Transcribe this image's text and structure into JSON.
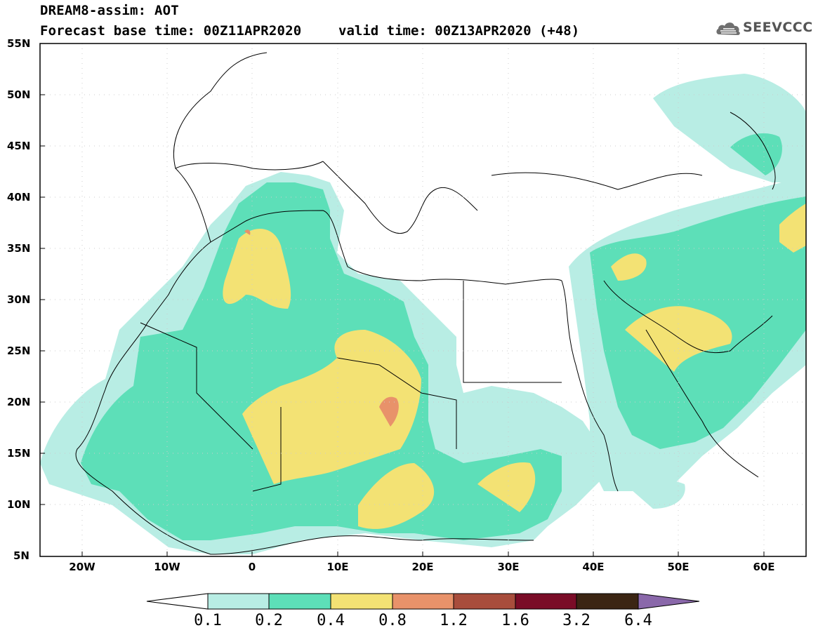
{
  "title": {
    "line1": "DREAM8-assim: AOT",
    "line2_base": "Forecast base time: 00Z11APR2020",
    "line2_valid": "valid time: 00Z13APR2020 (+48)"
  },
  "logo": {
    "text": "SEEVCCC",
    "icon": "cloud-icon"
  },
  "map": {
    "lat_labels": [
      "55N",
      "50N",
      "45N",
      "40N",
      "35N",
      "30N",
      "25N",
      "20N",
      "15N",
      "10N",
      "5N"
    ],
    "lon_labels": [
      "20W",
      "10W",
      "0",
      "10E",
      "20E",
      "30E",
      "40E",
      "50E",
      "60E"
    ]
  },
  "colorbar": {
    "labels": [
      "0.1",
      "0.2",
      "0.4",
      "0.8",
      "1.2",
      "1.6",
      "3.2",
      "6.4"
    ],
    "colors": [
      "#b8ede4",
      "#5ddfb8",
      "#f3e274",
      "#e8926a",
      "#a84d3c",
      "#7a0c27",
      "#3b2513",
      "#8a68aa"
    ]
  }
}
